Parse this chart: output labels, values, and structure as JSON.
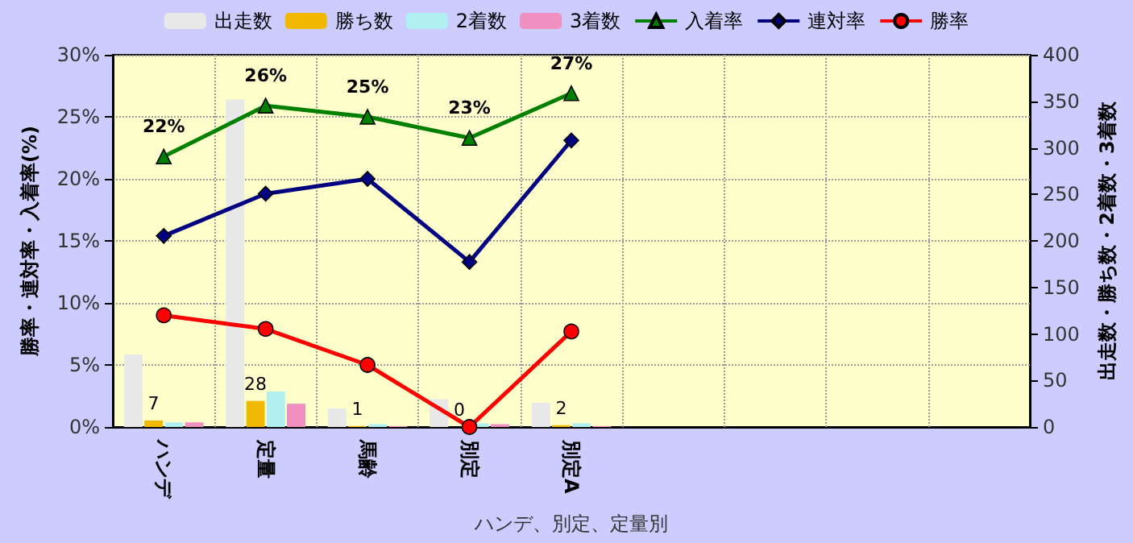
{
  "chart_data": {
    "type": "bar",
    "xlabel": "ハンデ、別定、定量別",
    "ylabel": "勝率・連対率・入着率(%)",
    "y2label": "出走数・勝ち数・2着数・3着数",
    "categories": [
      "ハンデ",
      "定量",
      "馬齢",
      "別定",
      "別定A",
      null,
      null,
      null,
      null
    ],
    "series": [
      {
        "name": "出走数",
        "axis": "y2",
        "color": "#e8e8e8",
        "values": [
          78,
          352,
          20,
          30,
          26,
          null,
          null,
          null,
          null
        ]
      },
      {
        "name": "勝ち数",
        "axis": "y2",
        "color": "#f0b800",
        "values": [
          7,
          28,
          1,
          0,
          2,
          null,
          null,
          null,
          null
        ],
        "value_labels": [
          "7",
          "28",
          "1",
          "0",
          "2",
          null,
          null,
          null,
          null
        ]
      },
      {
        "name": "2着数",
        "axis": "y2",
        "color": "#b0f0f0",
        "values": [
          5,
          38,
          3,
          4,
          4,
          null,
          null,
          null,
          null
        ]
      },
      {
        "name": "3着数",
        "axis": "y2",
        "color": "#f090c0",
        "values": [
          5,
          25,
          1,
          3,
          1,
          null,
          null,
          null,
          null
        ]
      },
      {
        "name": "入着率",
        "type": "line",
        "color": "#008000",
        "marker": "triangle",
        "values": [
          21.8,
          25.9,
          25,
          23.3,
          26.9,
          null,
          null,
          null,
          null
        ],
        "value_labels": [
          "22%",
          "26%",
          "25%",
          "23%",
          "27%",
          null,
          null,
          null,
          null
        ]
      },
      {
        "name": "連対率",
        "type": "line",
        "color": "#000080",
        "marker": "diamond",
        "values": [
          15.4,
          18.8,
          20,
          13.3,
          23.1,
          null,
          null,
          null,
          null
        ]
      },
      {
        "name": "勝率",
        "type": "line",
        "color": "#ff0000",
        "marker": "circle",
        "values": [
          9,
          7.9,
          5,
          0,
          7.7,
          null,
          null,
          null,
          null
        ]
      }
    ],
    "ylim": [
      0,
      30
    ],
    "yticks": [
      {
        "value": 0,
        "label": "0%"
      },
      {
        "value": 5,
        "label": "5%"
      },
      {
        "value": 10,
        "label": "10%"
      },
      {
        "value": 15,
        "label": "15%"
      },
      {
        "value": 20,
        "label": "20%"
      },
      {
        "value": 25,
        "label": "25%"
      },
      {
        "value": 30,
        "label": "30%"
      }
    ],
    "y2lim": [
      0,
      400
    ],
    "y2ticks": [
      0,
      50,
      100,
      150,
      200,
      250,
      300,
      350,
      400
    ],
    "grid": true,
    "legend": "top"
  }
}
